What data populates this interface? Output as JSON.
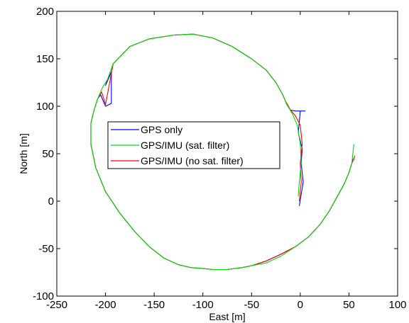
{
  "chart_data": {
    "type": "line",
    "title": "",
    "xlabel": "East [m]",
    "ylabel": "North [m]",
    "xlim": [
      -250,
      100
    ],
    "ylim": [
      -100,
      200
    ],
    "xticks": [
      -250,
      -200,
      -150,
      -100,
      -50,
      0,
      50,
      100
    ],
    "yticks": [
      -100,
      -50,
      0,
      50,
      100,
      150,
      200
    ],
    "xtick_labels": [
      "-250",
      "-200",
      "-150",
      "-100",
      "-50",
      "0",
      "50",
      "100"
    ],
    "ytick_labels": [
      "-100",
      "-50",
      "0",
      "50",
      "100",
      "150",
      "200"
    ],
    "grid": false,
    "legend_position": "center-left",
    "series": [
      {
        "name": "GPS only",
        "color": "#0000ff",
        "x": [
          54,
          53,
          50,
          45,
          38,
          30,
          20,
          8,
          -5,
          -20,
          -35,
          -50,
          -60,
          -75,
          -90,
          -100,
          -112,
          -125,
          -140,
          -155,
          -170,
          -185,
          -200,
          -210,
          -215,
          -215,
          -212,
          -208,
          -205,
          -200,
          -194,
          -194,
          -200,
          -192,
          -175,
          -155,
          -130,
          -110,
          -90,
          -70,
          -50,
          -35,
          -25,
          -18,
          -15,
          -10,
          -5,
          0,
          5,
          0,
          -2,
          2,
          1,
          3,
          -1
        ],
        "y": [
          45,
          40,
          30,
          18,
          5,
          -10,
          -25,
          -38,
          -48,
          -56,
          -63,
          -68,
          -70,
          -72,
          -72,
          -71,
          -70,
          -67,
          -60,
          -48,
          -32,
          -13,
          10,
          35,
          60,
          82,
          95,
          108,
          112,
          100,
          103,
          136,
          122,
          145,
          163,
          171,
          175,
          176,
          172,
          163,
          150,
          138,
          125,
          112,
          105,
          96,
          95,
          95,
          95,
          95,
          72,
          55,
          40,
          20,
          -5
        ]
      },
      {
        "name": "GPS/IMU (sat. filter)",
        "color": "#00dd00",
        "x": [
          55,
          54,
          53,
          50,
          45,
          38,
          30,
          20,
          8,
          -5,
          -20,
          -35,
          -50,
          -60,
          -75,
          -90,
          -100,
          -112,
          -125,
          -140,
          -155,
          -170,
          -185,
          -200,
          -210,
          -215,
          -215,
          -212,
          -208,
          -203,
          -198,
          -192,
          -175,
          -155,
          -130,
          -110,
          -90,
          -70,
          -50,
          -35,
          -25,
          -18,
          -14,
          -8,
          -3,
          0,
          1,
          -1,
          -2
        ],
        "y": [
          60,
          50,
          40,
          30,
          18,
          5,
          -10,
          -25,
          -38,
          -48,
          -58,
          -65,
          -68,
          -70,
          -72,
          -72,
          -71,
          -70,
          -67,
          -60,
          -48,
          -32,
          -13,
          10,
          35,
          60,
          82,
          95,
          108,
          120,
          128,
          145,
          163,
          171,
          175,
          176,
          172,
          163,
          150,
          138,
          125,
          112,
          102,
          92,
          80,
          60,
          40,
          20,
          5
        ]
      },
      {
        "name": "GPS/IMU (no sat. filter)",
        "color": "#ff0000",
        "x": [
          56,
          55,
          53,
          50,
          45,
          38,
          30,
          20,
          8,
          -5,
          -20,
          -35,
          -50,
          -60,
          -75,
          -90,
          -100,
          -112,
          -125,
          -140,
          -155,
          -170,
          -185,
          -200,
          -210,
          -215,
          -215,
          -212,
          -208,
          -204,
          -200,
          -197,
          -192,
          -175,
          -155,
          -130,
          -110,
          -90,
          -70,
          -50,
          -35,
          -25,
          -18,
          -15,
          -10,
          -5,
          0,
          2,
          0,
          1,
          -1
        ],
        "y": [
          48,
          44,
          40,
          30,
          18,
          5,
          -10,
          -25,
          -38,
          -48,
          -56,
          -63,
          -68,
          -70,
          -72,
          -72,
          -71,
          -70,
          -67,
          -60,
          -48,
          -32,
          -13,
          10,
          35,
          60,
          82,
          95,
          108,
          115,
          102,
          118,
          145,
          163,
          171,
          175,
          176,
          172,
          163,
          150,
          138,
          125,
          112,
          105,
          96,
          90,
          80,
          60,
          40,
          20,
          0
        ]
      }
    ]
  }
}
